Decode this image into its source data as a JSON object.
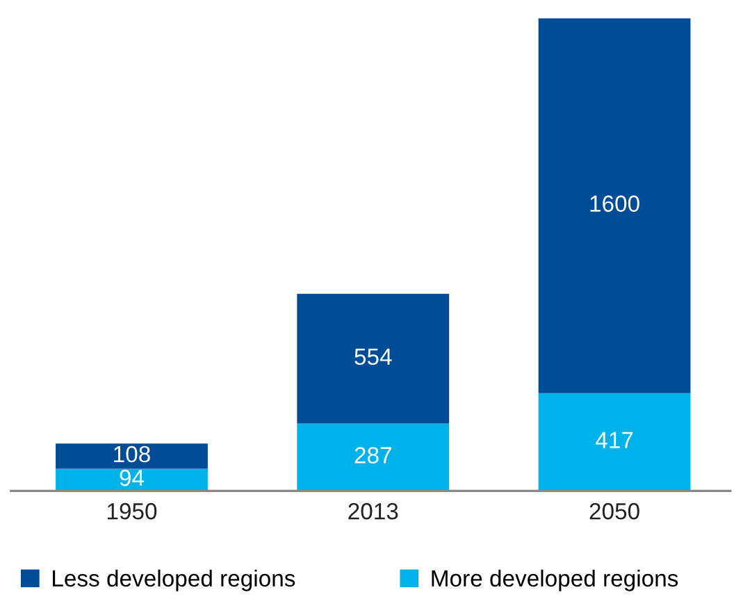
{
  "chart_data": {
    "type": "bar",
    "stacked": true,
    "categories": [
      "1950",
      "2013",
      "2050"
    ],
    "series": [
      {
        "name": "More developed regions",
        "color": "#00b2ea",
        "values": [
          94,
          287,
          417
        ]
      },
      {
        "name": "Less developed regions",
        "color": "#004c97",
        "values": [
          108,
          554,
          1600
        ]
      }
    ],
    "data_labels": true,
    "legend": "bottom",
    "grid": false
  }
}
